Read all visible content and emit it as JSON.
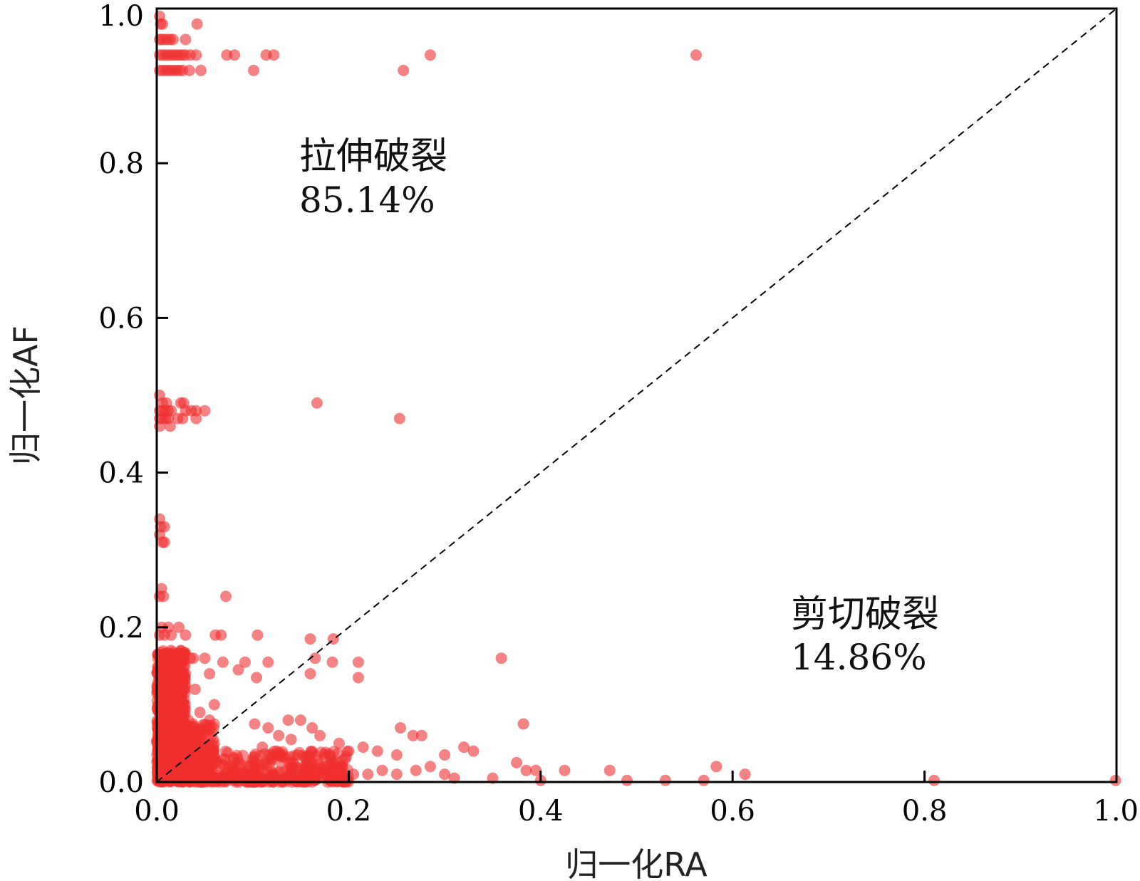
{
  "chart_data": {
    "type": "scatter",
    "title": "",
    "xlabel": "归一化RA",
    "ylabel": "归一化AF",
    "xlim": [
      0,
      1
    ],
    "ylim": [
      0,
      1
    ],
    "x_ticks": [
      "0.0",
      "0.2",
      "0.4",
      "0.6",
      "0.8",
      "1.0"
    ],
    "y_ticks": [
      "0.0",
      "0.2",
      "0.4",
      "0.6",
      "0.8",
      "1.0"
    ],
    "grid": false,
    "point_color": "#f03030",
    "reference_line": {
      "style": "dashed",
      "from": [
        0,
        0
      ],
      "to": [
        1,
        1
      ],
      "color": "#000000"
    },
    "annotations": [
      {
        "label": "拉伸破裂",
        "value": "85.14%",
        "region": "upper-left"
      },
      {
        "label": "剪切破裂",
        "value": "14.86%",
        "region": "lower-right"
      }
    ],
    "series": [
      {
        "points": [
          [
            0.003,
            0.99
          ],
          [
            0.004,
            0.98
          ],
          [
            0.006,
            0.98
          ],
          [
            0.042,
            0.98
          ],
          [
            0.003,
            0.96
          ],
          [
            0.005,
            0.96
          ],
          [
            0.008,
            0.96
          ],
          [
            0.011,
            0.96
          ],
          [
            0.014,
            0.96
          ],
          [
            0.017,
            0.96
          ],
          [
            0.03,
            0.96
          ],
          [
            0.003,
            0.94
          ],
          [
            0.006,
            0.94
          ],
          [
            0.009,
            0.94
          ],
          [
            0.012,
            0.94
          ],
          [
            0.015,
            0.94
          ],
          [
            0.018,
            0.94
          ],
          [
            0.021,
            0.94
          ],
          [
            0.024,
            0.94
          ],
          [
            0.027,
            0.94
          ],
          [
            0.03,
            0.94
          ],
          [
            0.035,
            0.94
          ],
          [
            0.041,
            0.94
          ],
          [
            0.073,
            0.94
          ],
          [
            0.081,
            0.94
          ],
          [
            0.114,
            0.94
          ],
          [
            0.122,
            0.94
          ],
          [
            0.285,
            0.94
          ],
          [
            0.562,
            0.94
          ],
          [
            0.003,
            0.92
          ],
          [
            0.006,
            0.92
          ],
          [
            0.009,
            0.92
          ],
          [
            0.012,
            0.92
          ],
          [
            0.015,
            0.92
          ],
          [
            0.018,
            0.92
          ],
          [
            0.021,
            0.92
          ],
          [
            0.024,
            0.92
          ],
          [
            0.027,
            0.92
          ],
          [
            0.034,
            0.92
          ],
          [
            0.046,
            0.92
          ],
          [
            0.101,
            0.92
          ],
          [
            0.257,
            0.92
          ],
          [
            0.003,
            0.5
          ],
          [
            0.006,
            0.49
          ],
          [
            0.01,
            0.49
          ],
          [
            0.025,
            0.49
          ],
          [
            0.028,
            0.49
          ],
          [
            0.167,
            0.49
          ],
          [
            0.003,
            0.48
          ],
          [
            0.006,
            0.48
          ],
          [
            0.009,
            0.48
          ],
          [
            0.012,
            0.48
          ],
          [
            0.015,
            0.48
          ],
          [
            0.03,
            0.48
          ],
          [
            0.036,
            0.48
          ],
          [
            0.041,
            0.48
          ],
          [
            0.05,
            0.48
          ],
          [
            0.003,
            0.47
          ],
          [
            0.006,
            0.47
          ],
          [
            0.009,
            0.47
          ],
          [
            0.012,
            0.47
          ],
          [
            0.022,
            0.47
          ],
          [
            0.027,
            0.47
          ],
          [
            0.041,
            0.47
          ],
          [
            0.253,
            0.47
          ],
          [
            0.003,
            0.46
          ],
          [
            0.014,
            0.46
          ],
          [
            0.003,
            0.34
          ],
          [
            0.004,
            0.33
          ],
          [
            0.008,
            0.33
          ],
          [
            0.003,
            0.32
          ],
          [
            0.006,
            0.31
          ],
          [
            0.008,
            0.31
          ],
          [
            0.005,
            0.25
          ],
          [
            0.003,
            0.24
          ],
          [
            0.007,
            0.24
          ],
          [
            0.072,
            0.24
          ],
          [
            0.005,
            0.2
          ],
          [
            0.012,
            0.2
          ],
          [
            0.023,
            0.2
          ],
          [
            0.003,
            0.19
          ],
          [
            0.008,
            0.19
          ],
          [
            0.015,
            0.19
          ],
          [
            0.03,
            0.19
          ],
          [
            0.061,
            0.19
          ],
          [
            0.067,
            0.19
          ],
          [
            0.105,
            0.19
          ],
          [
            0.16,
            0.185
          ],
          [
            0.184,
            0.185
          ],
          [
            0.015,
            0.17
          ],
          [
            0.025,
            0.17
          ],
          [
            0.035,
            0.16
          ],
          [
            0.038,
            0.16
          ],
          [
            0.05,
            0.16
          ],
          [
            0.165,
            0.16
          ],
          [
            0.359,
            0.16
          ],
          [
            0.069,
            0.155
          ],
          [
            0.092,
            0.155
          ],
          [
            0.116,
            0.155
          ],
          [
            0.183,
            0.155
          ],
          [
            0.21,
            0.155
          ],
          [
            0.03,
            0.14
          ],
          [
            0.055,
            0.14
          ],
          [
            0.085,
            0.145
          ],
          [
            0.104,
            0.135
          ],
          [
            0.16,
            0.14
          ],
          [
            0.21,
            0.135
          ],
          [
            0.028,
            0.12
          ],
          [
            0.04,
            0.12
          ],
          [
            0.06,
            0.1
          ],
          [
            0.045,
            0.09
          ],
          [
            0.055,
            0.08
          ],
          [
            0.102,
            0.075
          ],
          [
            0.116,
            0.07
          ],
          [
            0.137,
            0.08
          ],
          [
            0.15,
            0.08
          ],
          [
            0.162,
            0.07
          ],
          [
            0.254,
            0.07
          ],
          [
            0.382,
            0.075
          ],
          [
            0.127,
            0.06
          ],
          [
            0.14,
            0.055
          ],
          [
            0.17,
            0.06
          ],
          [
            0.19,
            0.05
          ],
          [
            0.267,
            0.06
          ],
          [
            0.276,
            0.06
          ],
          [
            0.33,
            0.04
          ],
          [
            0.32,
            0.045
          ],
          [
            0.11,
            0.045
          ],
          [
            0.125,
            0.04
          ],
          [
            0.2,
            0.04
          ],
          [
            0.215,
            0.045
          ],
          [
            0.23,
            0.04
          ],
          [
            0.25,
            0.035
          ],
          [
            0.3,
            0.035
          ],
          [
            0.145,
            0.02
          ],
          [
            0.16,
            0.025
          ],
          [
            0.175,
            0.02
          ],
          [
            0.19,
            0.02
          ],
          [
            0.205,
            0.01
          ],
          [
            0.22,
            0.01
          ],
          [
            0.235,
            0.015
          ],
          [
            0.25,
            0.01
          ],
          [
            0.27,
            0.015
          ],
          [
            0.285,
            0.02
          ],
          [
            0.3,
            0.01
          ],
          [
            0.31,
            0.005
          ],
          [
            0.35,
            0.005
          ],
          [
            0.375,
            0.025
          ],
          [
            0.385,
            0.015
          ],
          [
            0.395,
            0.015
          ],
          [
            0.425,
            0.015
          ],
          [
            0.472,
            0.015
          ],
          [
            0.583,
            0.02
          ],
          [
            0.613,
            0.01
          ],
          [
            0.4,
            0.002
          ],
          [
            0.49,
            0.002
          ],
          [
            0.53,
            0.002
          ],
          [
            0.57,
            0.002
          ],
          [
            0.81,
            0.002
          ],
          [
            0.999,
            0.002
          ]
        ]
      }
    ]
  }
}
